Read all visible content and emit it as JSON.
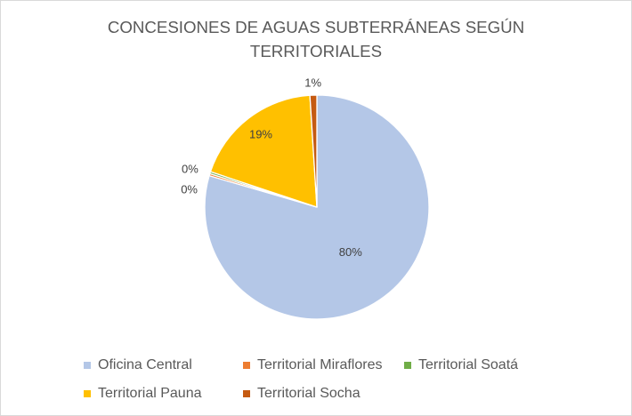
{
  "chart_data": {
    "type": "pie",
    "title": "CONCESIONES DE AGUAS SUBTERRÁNEAS SEGÚN TERRITORIALES",
    "categories": [
      "Oficina Central",
      "Territorial Miraflores",
      "Territorial Soatá",
      "Territorial Pauna",
      "Territorial Socha"
    ],
    "values": [
      80,
      0.3,
      0.3,
      19,
      1
    ],
    "data_labels": [
      "80%",
      "0%",
      "0%",
      "19%",
      "1%"
    ],
    "colors": [
      "#B4C7E7",
      "#ED7D31",
      "#70AD47",
      "#FFC000",
      "#C55A11"
    ],
    "legend": "bottom"
  }
}
